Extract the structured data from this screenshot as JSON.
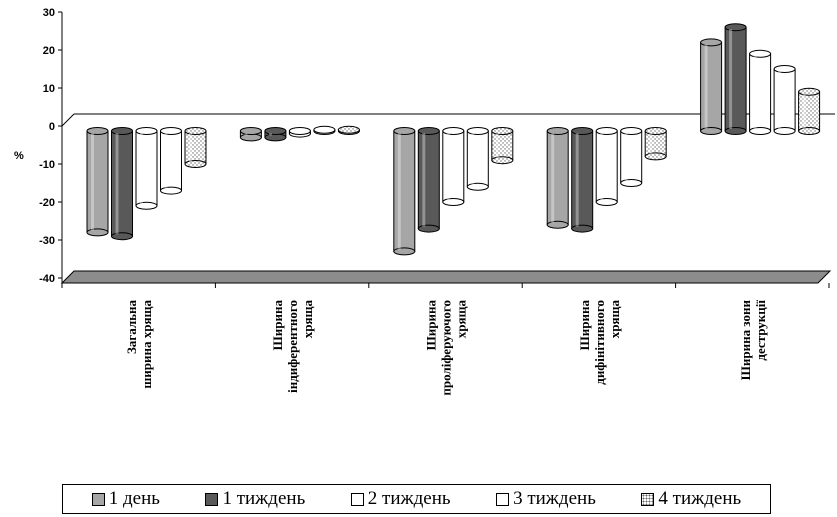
{
  "chart_data": {
    "type": "bar",
    "ylabel": "%",
    "ylim": [
      -40,
      30
    ],
    "yticks": [
      30,
      20,
      10,
      0,
      -10,
      -20,
      -30,
      -40
    ],
    "categories": [
      [
        "Загальна",
        "ширина хряща"
      ],
      [
        "Ширина",
        "індиферентного",
        "хряща"
      ],
      [
        "Ширина",
        "проліферуючого",
        "хряща"
      ],
      [
        "Ширина",
        "дифінітивного",
        "хряща"
      ],
      [
        "Ширина зони",
        "деструкції"
      ]
    ],
    "series": [
      {
        "name": "1 день",
        "color": "#a6a6a6",
        "values": [
          -28,
          -3,
          -33,
          -26,
          22
        ]
      },
      {
        "name": "1 тиждень",
        "color": "#595959",
        "values": [
          -29,
          -3,
          -27,
          -27,
          26
        ]
      },
      {
        "name": "2 тиждень",
        "color": "#ffffff",
        "values": [
          -21,
          -2,
          -20,
          -20,
          19
        ]
      },
      {
        "name": "3 тиждень",
        "color": "#ffffff",
        "values": [
          -17,
          -1,
          -16,
          -15,
          15
        ]
      },
      {
        "name": "4 тиждень",
        "color": "#e8e8e8",
        "pattern": "dotted",
        "values": [
          -10,
          -1,
          -9,
          -8,
          9
        ]
      }
    ]
  }
}
